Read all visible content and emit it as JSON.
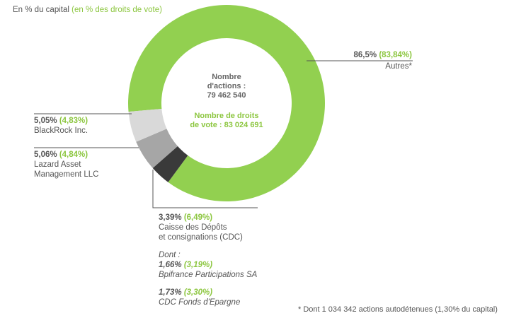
{
  "header": {
    "capital_label": "En % du capital",
    "vote_label": "(en % des droits de vote)"
  },
  "center": {
    "shares_line1": "Nombre",
    "shares_line2": "d'actions :",
    "shares_value": "79 462 540",
    "votes_line1": "Nombre de droits",
    "votes_line2": "de vote : 83 024 691"
  },
  "colors": {
    "autres": "#92d050",
    "cdc": "#3a3a3a",
    "lazard": "#a6a6a6",
    "blackrock": "#d9d9d9",
    "accent_text": "#8cc63f"
  },
  "chart_data": {
    "type": "pie",
    "title": "",
    "series": [
      {
        "name": "Autres*",
        "capital_pct": 86.5,
        "vote_pct": 83.84,
        "capital_label": "86,5%",
        "vote_label": "(83,84%)"
      },
      {
        "name": "Caisse des Dépôts et consignations (CDC)",
        "capital_pct": 3.39,
        "vote_pct": 6.49,
        "capital_label": "3,39%",
        "vote_label": "(6,49%)"
      },
      {
        "name": "Lazard Asset Management LLC",
        "capital_pct": 5.06,
        "vote_pct": 4.84,
        "capital_label": "5,06%",
        "vote_label": "(4,84%)"
      },
      {
        "name": "BlackRock Inc.",
        "capital_pct": 5.05,
        "vote_pct": 4.83,
        "capital_label": "5,05%",
        "vote_label": "(4,83%)"
      }
    ],
    "labels": {
      "autres": {
        "pct": "86,5%",
        "vote": "(83,84%)",
        "name": "Autres*"
      },
      "blackrock": {
        "pct": "5,05%",
        "vote": "(4,83%)",
        "name": "BlackRock Inc."
      },
      "lazard": {
        "pct": "5,06%",
        "vote": "(4,84%)",
        "name_line1": "Lazard Asset",
        "name_line2": "Management LLC"
      },
      "cdc": {
        "pct": "3,39%",
        "vote": "(6,49%)",
        "name_line1": "Caisse des Dépôts",
        "name_line2": "et consignations (CDC)",
        "dont_label": "Dont :",
        "sub1_pct": "1,66%",
        "sub1_vote": "(3,19%)",
        "sub1_name": "Bpifrance Participations SA",
        "sub2_pct": "1,73%",
        "sub2_vote": "(3,30%)",
        "sub2_name": "CDC Fonds d'Epargne"
      }
    }
  },
  "footnote": "* Dont 1 034 342 actions autodétenues  (1,30% du capital)"
}
